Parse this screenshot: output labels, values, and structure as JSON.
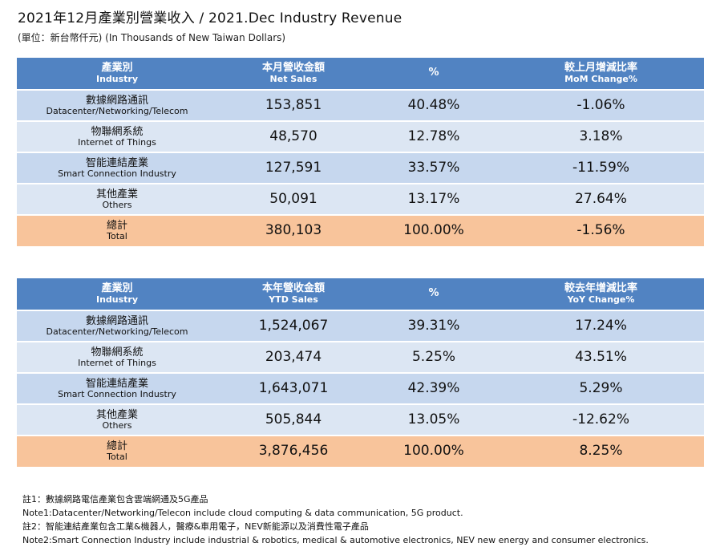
{
  "title": "2021年12月產業別營業收入 / 2021.Dec Industry Revenue",
  "subtitle": "(單位：新台幣仟元) (In Thousands of New Taiwan Dollars)",
  "monthly": {
    "headers": {
      "industry_zh": "產業別",
      "industry_en": "Industry",
      "sales_zh": "本月營收金額",
      "sales_en": "Net Sales",
      "pct": "%",
      "change_zh": "較上月增減比率",
      "change_en": "MoM Change%"
    },
    "rows": [
      {
        "zh": "數據網路通訊",
        "en": "Datacenter/Networking/Telecom",
        "sales": "153,851",
        "pct": "40.48%",
        "change": "-1.06%"
      },
      {
        "zh": "物聯網系統",
        "en": "Internet of Things",
        "sales": "48,570",
        "pct": "12.78%",
        "change": "3.18%"
      },
      {
        "zh": "智能連結產業",
        "en": "Smart Connection Industry",
        "sales": "127,591",
        "pct": "33.57%",
        "change": "-11.59%"
      },
      {
        "zh": "其他產業",
        "en": "Others",
        "sales": "50,091",
        "pct": "13.17%",
        "change": "27.64%"
      }
    ],
    "total": {
      "zh": "總計",
      "en": "Total",
      "sales": "380,103",
      "pct": "100.00%",
      "change": "-1.56%"
    }
  },
  "ytd": {
    "headers": {
      "industry_zh": "產業別",
      "industry_en": "Industry",
      "sales_zh": "本年營收金額",
      "sales_en": "YTD Sales",
      "pct": "%",
      "change_zh": "較去年增減比率",
      "change_en": "YoY Change%"
    },
    "rows": [
      {
        "zh": "數據網路通訊",
        "en": "Datacenter/Networking/Telecom",
        "sales": "1,524,067",
        "pct": "39.31%",
        "change": "17.24%"
      },
      {
        "zh": "物聯網系統",
        "en": "Internet of Things",
        "sales": "203,474",
        "pct": "5.25%",
        "change": "43.51%"
      },
      {
        "zh": "智能連結產業",
        "en": "Smart Connection Industry",
        "sales": "1,643,071",
        "pct": "42.39%",
        "change": "5.29%"
      },
      {
        "zh": "其他產業",
        "en": "Others",
        "sales": "505,844",
        "pct": "13.05%",
        "change": "-12.62%"
      }
    ],
    "total": {
      "zh": "總計",
      "en": "Total",
      "sales": "3,876,456",
      "pct": "100.00%",
      "change": "8.25%"
    }
  },
  "notes": [
    "註1：數據網路電信產業包含雲端網通及5G產品",
    "Note1:Datacenter/Networking/Telecon include cloud computing & data communication, 5G product.",
    "註2：智能連結產業包含工業&機器人，醫療&車用電子，NEV新能源以及消費性電子產品",
    "Note2:Smart Connection Industry include industrial & robotics, medical & automotive electronics, NEV new energy and consumer electronics."
  ],
  "colors": {
    "header": "#5183c2",
    "row_dark": "#c6d7ee",
    "row_light": "#dce6f3",
    "total": "#f8c49b"
  }
}
